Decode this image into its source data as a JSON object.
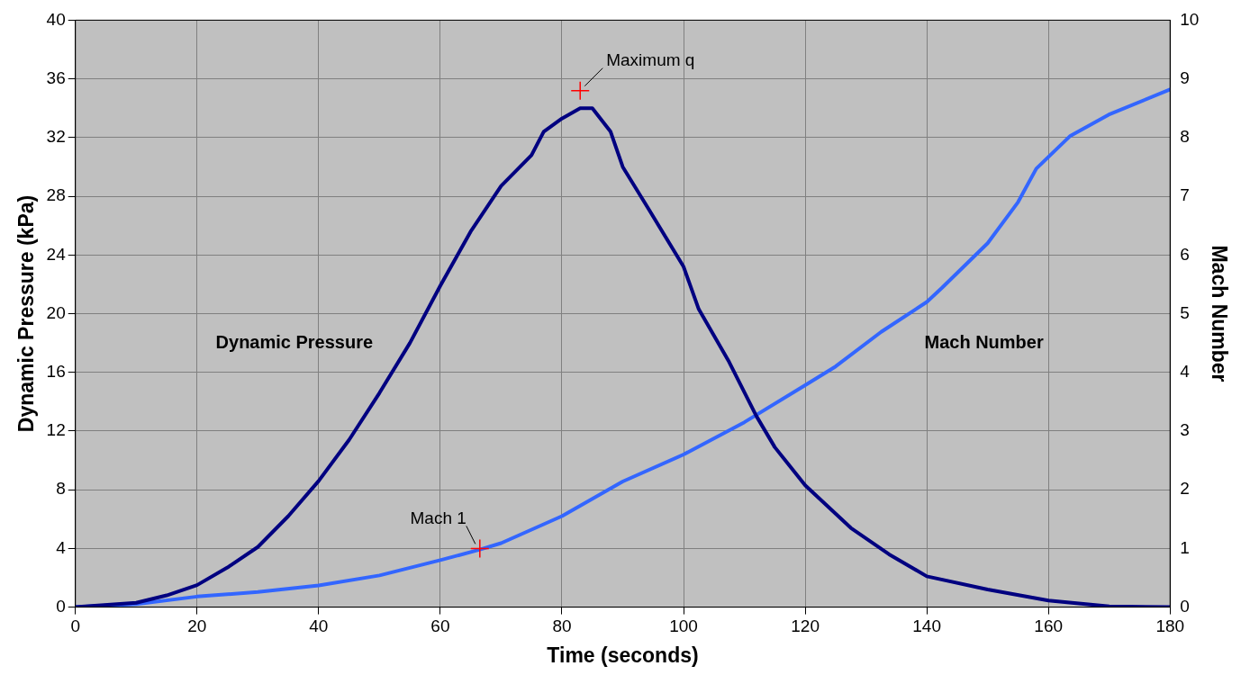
{
  "chart_data": {
    "type": "line",
    "xlabel": "Time (seconds)",
    "ylabel": "Dynamic Pressure (kPa)",
    "y2label": "Mach Number",
    "xlim": [
      0,
      180
    ],
    "xticks": [
      0,
      20,
      40,
      60,
      80,
      100,
      120,
      140,
      160,
      180
    ],
    "ylim": [
      0,
      40
    ],
    "yticks": [
      0,
      4,
      8,
      12,
      16,
      20,
      24,
      28,
      32,
      36,
      40
    ],
    "y2lim": [
      0,
      10
    ],
    "y2ticks": [
      0,
      1,
      2,
      3,
      4,
      5,
      6,
      7,
      8,
      9,
      10
    ],
    "grid": true,
    "legend": false,
    "marker": "none",
    "line_style": "solid",
    "series": [
      {
        "name": "Dynamic Pressure",
        "color": "#000080",
        "x": [
          0,
          10,
          15,
          20,
          25,
          30,
          35,
          40,
          45,
          50,
          55,
          60,
          65,
          70,
          75,
          77,
          80,
          83,
          85,
          88,
          90,
          94.3,
          100,
          102.5,
          107.5,
          112,
          115,
          120,
          127.5,
          133.8,
          140,
          150,
          160,
          170,
          180
        ],
        "values": [
          0,
          0.3,
          0.8,
          1.5,
          2.7,
          4.1,
          6.2,
          8.6,
          11.4,
          14.6,
          18.0,
          21.9,
          25.6,
          28.7,
          30.8,
          32.4,
          33.3,
          34.0,
          34.0,
          32.4,
          30.0,
          27.1,
          23.2,
          20.3,
          16.7,
          13.0,
          10.9,
          8.3,
          5.4,
          3.6,
          2.1,
          1.2,
          0.45,
          0.05,
          0
        ]
      },
      {
        "name": "Mach Number",
        "color": "#3366ff",
        "axis": "y2",
        "x": [
          0,
          10,
          20,
          30,
          40,
          50,
          60,
          66.5,
          70,
          80,
          90,
          100,
          110,
          120,
          125,
          132.5,
          140,
          142.5,
          150,
          155,
          158,
          163.6,
          169.9,
          180
        ],
        "values": [
          0,
          0.05,
          0.18,
          0.26,
          0.37,
          0.54,
          0.8,
          0.98,
          1.09,
          1.55,
          2.14,
          2.6,
          3.15,
          3.78,
          4.1,
          4.69,
          5.2,
          5.44,
          6.2,
          6.9,
          7.47,
          8.03,
          8.39,
          8.82
        ]
      }
    ],
    "annotations": [
      {
        "text": "Maximum q",
        "x": 83,
        "y": 35.2
      },
      {
        "text": "Mach 1",
        "x": 66.5,
        "y": 4
      }
    ]
  }
}
